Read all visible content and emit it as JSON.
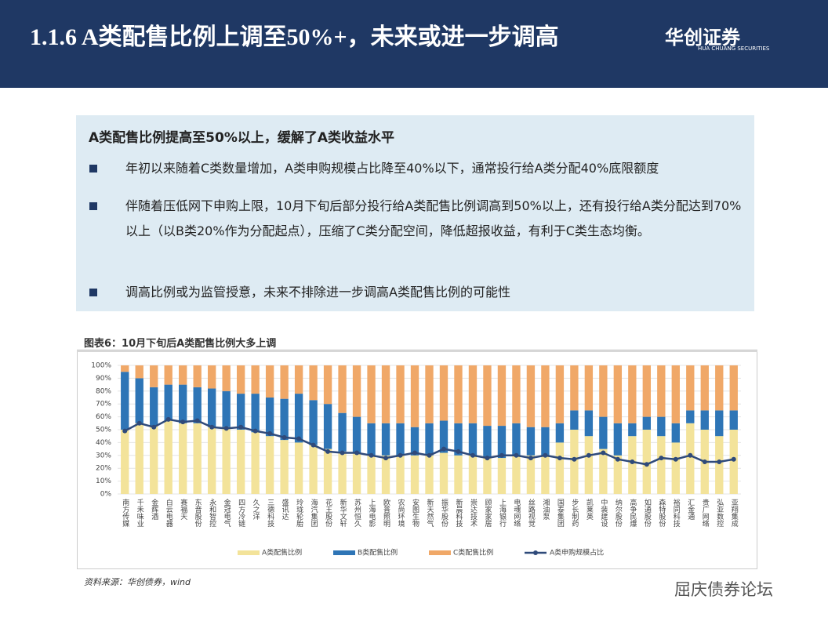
{
  "header": {
    "title": "1.1.6 A类配售比例上调至50%+，未来或进一步调高",
    "logo": "华创证券",
    "logo_sub": "HUA CHUANG SECURITIES"
  },
  "box": {
    "heading": "A类配售比例提高至50%以上，缓解了A类收益水平",
    "bullets": [
      "年初以来随着C类数量增加，A类申购规模占比降至40%以下，通常投行给A类分配40%底限额度",
      "伴随着压低网下申购上限，10月下旬后部分投行给A类配售比例调高到50%以上，还有投行给A类分配达到70%以上（以B类20%作为分配起点），压缩了C类分配空间，降低超报收益，有利于C类生态均衡。",
      "调高比例或为监管授意，未来不排除进一步调高A类配售比例的可能性"
    ]
  },
  "chart_data": {
    "type": "bar",
    "title": "图表6：10月下旬后A类配售比例大多上调",
    "categories": [
      "南方传媒",
      "千禾味业",
      "金辉酒",
      "白云电器",
      "赛福天",
      "东音股份",
      "永和智控",
      "金冠电气",
      "四方冷链",
      "久之洋",
      "三德科技",
      "盛讯达",
      "玲珑轮胎",
      "海汽集团",
      "花王股份",
      "新华文轩",
      "苏州恒久",
      "上海电影",
      "欧普照明",
      "农尚环境",
      "安图生物",
      "新天然气",
      "振华股份",
      "新晨科技",
      "崇达技术",
      "顾家家居",
      "上海银行",
      "电魂网络",
      "丝路视觉",
      "湘油泵",
      "国泰集团",
      "步长制药",
      "凯莱英",
      "中装建设",
      "纳尔股份",
      "高争民爆",
      "如通股份",
      "森特股份",
      "裕同科技",
      "汇金通",
      "贵广网络",
      "弘亚数控",
      "亚翔集成"
    ],
    "series": [
      {
        "name": "A类配售比例",
        "color": "#f3e39a",
        "values": [
          50,
          55,
          53,
          57,
          55,
          55,
          52,
          52,
          50,
          48,
          45,
          42,
          40,
          38,
          35,
          33,
          32,
          30,
          30,
          30,
          30,
          30,
          32,
          30,
          30,
          28,
          28,
          30,
          30,
          30,
          40,
          50,
          45,
          35,
          30,
          45,
          50,
          45,
          40,
          55,
          50,
          45,
          50
        ]
      },
      {
        "name": "B类配售比例",
        "color": "#2e75b6",
        "values": [
          45,
          35,
          30,
          28,
          30,
          28,
          30,
          28,
          28,
          30,
          30,
          32,
          38,
          35,
          35,
          30,
          28,
          25,
          25,
          25,
          22,
          25,
          25,
          25,
          25,
          25,
          25,
          25,
          22,
          22,
          15,
          15,
          20,
          25,
          25,
          10,
          10,
          15,
          15,
          10,
          15,
          20,
          15
        ]
      },
      {
        "name": "C类配售比例",
        "color": "#f0a868",
        "values": [
          5,
          10,
          17,
          15,
          15,
          17,
          18,
          20,
          22,
          22,
          25,
          26,
          22,
          27,
          30,
          37,
          40,
          45,
          45,
          45,
          48,
          45,
          43,
          45,
          45,
          47,
          47,
          45,
          48,
          48,
          45,
          35,
          35,
          40,
          45,
          45,
          40,
          40,
          45,
          35,
          35,
          35,
          35
        ]
      },
      {
        "name": "A类申购规模占比",
        "color": "#2f4a7a",
        "type": "line",
        "values": [
          49,
          55,
          52,
          58,
          56,
          57,
          52,
          51,
          52,
          49,
          47,
          44,
          43,
          38,
          33,
          32,
          32,
          30,
          28,
          30,
          32,
          30,
          35,
          33,
          30,
          28,
          30,
          30,
          28,
          30,
          28,
          27,
          30,
          32,
          27,
          25,
          23,
          28,
          27,
          30,
          25,
          25,
          27
        ]
      }
    ],
    "ylim": [
      0,
      100
    ],
    "yticks": [
      {
        "value": 0,
        "label": "0%"
      },
      {
        "value": 10,
        "label": "10%"
      },
      {
        "value": 20,
        "label": "20%"
      },
      {
        "value": 30,
        "label": "30%"
      },
      {
        "value": 40,
        "label": "40%"
      },
      {
        "value": 50,
        "label": "50%"
      },
      {
        "value": 60,
        "label": "60%"
      },
      {
        "value": 70,
        "label": "70%"
      },
      {
        "value": 80,
        "label": "80%"
      },
      {
        "value": 90,
        "label": "90%"
      },
      {
        "value": 100,
        "label": "100%"
      }
    ],
    "grid": true,
    "legend": "bottom",
    "source": "资料来源：华创债券，wind"
  },
  "watermark": "屈庆债券论坛"
}
